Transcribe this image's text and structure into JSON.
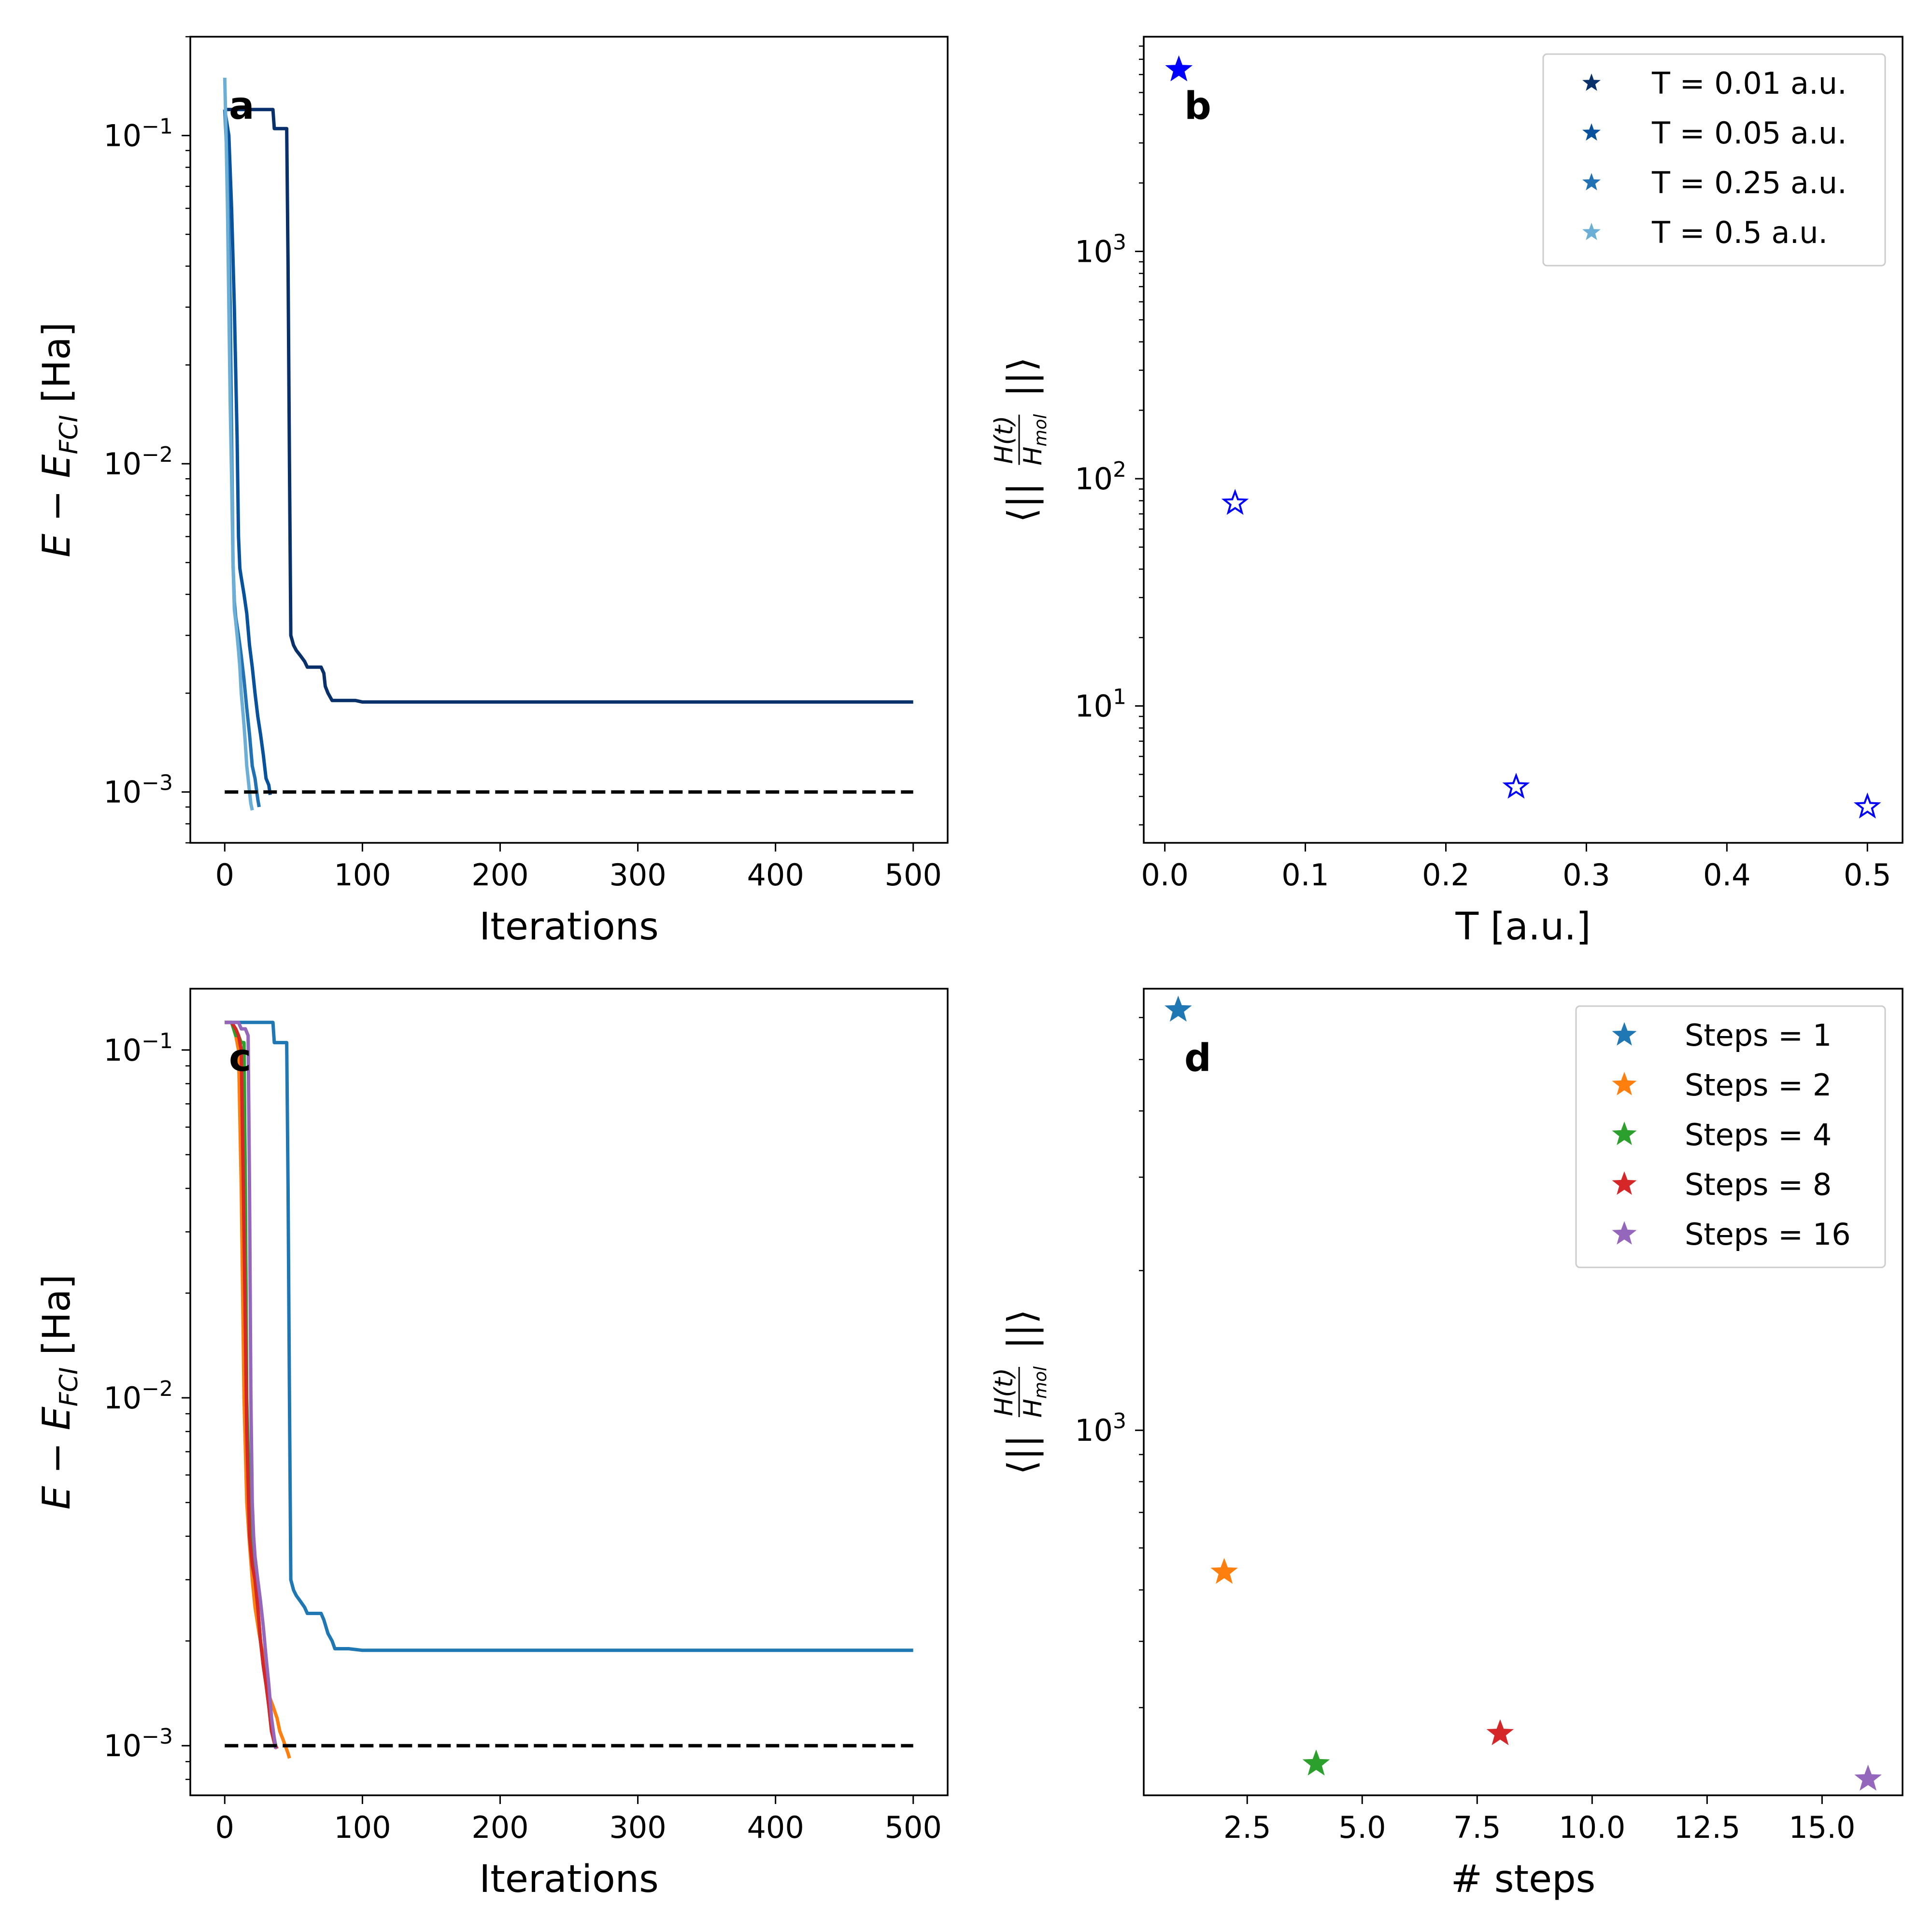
{
  "chart_data": [
    {
      "panel": "a",
      "type": "line",
      "xlabel": "Iterations",
      "ylabel": "E − E_FCI [Ha]",
      "ylabel_parts": {
        "main": "E − E",
        "sub": "FCI",
        "unit": " [Ha]"
      },
      "xlim": [
        -25,
        525
      ],
      "ylim": [
        0.0007,
        0.2
      ],
      "yscale": "log",
      "xticks": [
        0,
        100,
        200,
        300,
        400,
        500
      ],
      "yticks": [
        {
          "value": 0.001,
          "base": "10",
          "exp": "−3"
        },
        {
          "value": 0.01,
          "base": "10",
          "exp": "−2"
        },
        {
          "value": 0.1,
          "base": "10",
          "exp": "−1"
        }
      ],
      "threshold": {
        "value": 0.001,
        "x": [
          0,
          500
        ],
        "color": "#000000",
        "style": "dashed"
      },
      "series": [
        {
          "name": "T = 0.01 a.u.",
          "color": "#08306b",
          "x": [
            0,
            3,
            5,
            10,
            15,
            20,
            25,
            28,
            31,
            33,
            35,
            36,
            37,
            38,
            39,
            40,
            41,
            42,
            43,
            44,
            45,
            46,
            47,
            48,
            50,
            52,
            55,
            58,
            60,
            62,
            65,
            68,
            70,
            72,
            73,
            75,
            78,
            80,
            85,
            90,
            95,
            100,
            120,
            200,
            300,
            400,
            500
          ],
          "y": [
            0.12,
            0.12,
            0.12,
            0.12,
            0.12,
            0.12,
            0.12,
            0.12,
            0.12,
            0.12,
            0.12,
            0.105,
            0.105,
            0.105,
            0.105,
            0.105,
            0.105,
            0.105,
            0.105,
            0.105,
            0.105,
            0.04,
            0.01,
            0.003,
            0.0028,
            0.0027,
            0.0026,
            0.0025,
            0.0024,
            0.0024,
            0.0024,
            0.0024,
            0.0024,
            0.0023,
            0.0021,
            0.002,
            0.0019,
            0.0019,
            0.0019,
            0.0019,
            0.0019,
            0.00188,
            0.00188,
            0.00188,
            0.00188,
            0.00188,
            0.00188
          ]
        },
        {
          "name": "T = 0.05 a.u.",
          "color": "#08519c",
          "x": [
            0,
            3,
            5,
            7,
            9,
            10,
            11,
            12,
            14,
            16,
            18,
            20,
            22,
            24,
            26,
            28,
            30,
            32,
            33
          ],
          "y": [
            0.12,
            0.1,
            0.06,
            0.03,
            0.012,
            0.006,
            0.0048,
            0.0045,
            0.004,
            0.0035,
            0.0028,
            0.0024,
            0.002,
            0.0017,
            0.0015,
            0.0013,
            0.0011,
            0.00105,
            0.00098
          ]
        },
        {
          "name": "T = 0.25 a.u.",
          "color": "#2171b5",
          "x": [
            0,
            2,
            4,
            5,
            6,
            7,
            8,
            9,
            10,
            11,
            12,
            14,
            16,
            18,
            20,
            22,
            24,
            25
          ],
          "y": [
            0.12,
            0.08,
            0.03,
            0.012,
            0.005,
            0.0038,
            0.0034,
            0.0032,
            0.003,
            0.0028,
            0.0026,
            0.0022,
            0.0018,
            0.0015,
            0.0012,
            0.0011,
            0.00095,
            0.0009
          ]
        },
        {
          "name": "T = 0.5 a.u.",
          "color": "#6baed6",
          "x": [
            0,
            1,
            2,
            3,
            4,
            5,
            6,
            7,
            8,
            9,
            10,
            11,
            12,
            13,
            14,
            15,
            16,
            17,
            18,
            19,
            20
          ],
          "y": [
            0.15,
            0.1,
            0.06,
            0.03,
            0.015,
            0.009,
            0.005,
            0.0036,
            0.0033,
            0.003,
            0.0027,
            0.0024,
            0.002,
            0.0018,
            0.0016,
            0.0014,
            0.0012,
            0.0011,
            0.001,
            0.00092,
            0.00088
          ]
        }
      ]
    },
    {
      "panel": "b",
      "type": "scatter",
      "xlabel": "T [a.u.]",
      "ylabel": "⟨||H(t)/H_mol||⟩",
      "ylabel_parts": {
        "open": "⟨||",
        "num": "H(t)",
        "den_main": "H",
        "den_sub": "mol",
        "close": "||⟩"
      },
      "xlim": [
        -0.015,
        0.525
      ],
      "ylim": [
        2.5,
        8800
      ],
      "yscale": "log",
      "xticks": [
        0.0,
        0.1,
        0.2,
        0.3,
        0.4,
        0.5
      ],
      "xtick_labels": [
        "0.0",
        "0.1",
        "0.2",
        "0.3",
        "0.4",
        "0.5"
      ],
      "yticks": [
        {
          "value": 10,
          "base": "10",
          "exp": "1"
        },
        {
          "value": 100,
          "base": "10",
          "exp": "2"
        },
        {
          "value": 1000,
          "base": "10",
          "exp": "3"
        }
      ],
      "marker_color": "#0000ff",
      "points": [
        {
          "x": 0.01,
          "y": 6300,
          "filled": true
        },
        {
          "x": 0.05,
          "y": 78,
          "filled": false
        },
        {
          "x": 0.25,
          "y": 4.4,
          "filled": false
        },
        {
          "x": 0.5,
          "y": 3.6,
          "filled": false
        }
      ],
      "legend": {
        "placement": "top-right",
        "entries": [
          {
            "label": "T = 0.01 a.u.",
            "color": "#08306b"
          },
          {
            "label": "T = 0.05 a.u.",
            "color": "#08519c"
          },
          {
            "label": "T = 0.25 a.u.",
            "color": "#2171b5"
          },
          {
            "label": "T = 0.5 a.u.",
            "color": "#6baed6"
          }
        ]
      }
    },
    {
      "panel": "c",
      "type": "line",
      "xlabel": "Iterations",
      "ylabel": "E − E_FCI [Ha]",
      "ylabel_parts": {
        "main": "E − E",
        "sub": "FCI",
        "unit": " [Ha]"
      },
      "xlim": [
        -25,
        525
      ],
      "ylim": [
        0.00072,
        0.15
      ],
      "yscale": "log",
      "xticks": [
        0,
        100,
        200,
        300,
        400,
        500
      ],
      "yticks": [
        {
          "value": 0.001,
          "base": "10",
          "exp": "−3"
        },
        {
          "value": 0.01,
          "base": "10",
          "exp": "−2"
        },
        {
          "value": 0.1,
          "base": "10",
          "exp": "−1"
        }
      ],
      "threshold": {
        "value": 0.001,
        "x": [
          0,
          500
        ],
        "color": "#000000",
        "style": "dashed"
      },
      "series": [
        {
          "name": "Steps = 1",
          "color": "#1f77b4",
          "x": [
            0,
            5,
            10,
            20,
            30,
            35,
            36,
            40,
            45,
            46,
            47,
            48,
            50,
            52,
            55,
            58,
            60,
            65,
            70,
            72,
            75,
            78,
            80,
            90,
            100,
            120,
            200,
            300,
            400,
            500
          ],
          "y": [
            0.12,
            0.12,
            0.12,
            0.12,
            0.12,
            0.12,
            0.105,
            0.105,
            0.105,
            0.04,
            0.01,
            0.003,
            0.0028,
            0.0027,
            0.0026,
            0.0025,
            0.0024,
            0.0024,
            0.0024,
            0.0023,
            0.0021,
            0.002,
            0.0019,
            0.0019,
            0.00188,
            0.00188,
            0.00188,
            0.00188,
            0.00188,
            0.00188
          ]
        },
        {
          "name": "Steps = 2",
          "color": "#ff7f0e",
          "x": [
            0,
            5,
            8,
            10,
            12,
            14,
            16,
            18,
            20,
            22,
            25,
            28,
            30,
            32,
            35,
            38,
            40,
            42,
            44,
            46,
            47
          ],
          "y": [
            0.12,
            0.12,
            0.11,
            0.1,
            0.04,
            0.01,
            0.005,
            0.0038,
            0.003,
            0.0025,
            0.0021,
            0.0018,
            0.0016,
            0.0014,
            0.0013,
            0.0012,
            0.0011,
            0.00105,
            0.001,
            0.00095,
            0.00092
          ]
        },
        {
          "name": "Steps = 4",
          "color": "#2ca02c",
          "x": [
            0,
            5,
            8,
            10,
            12,
            14,
            15,
            16,
            18,
            20,
            22,
            24,
            26,
            28,
            30,
            32,
            34,
            36,
            37
          ],
          "y": [
            0.12,
            0.12,
            0.11,
            0.11,
            0.105,
            0.105,
            0.04,
            0.01,
            0.005,
            0.0035,
            0.003,
            0.0025,
            0.002,
            0.0017,
            0.0015,
            0.0013,
            0.0011,
            0.00105,
            0.001
          ]
        },
        {
          "name": "Steps = 8",
          "color": "#d62728",
          "x": [
            0,
            5,
            8,
            10,
            12,
            14,
            16,
            18,
            20,
            22,
            24,
            26,
            28,
            30,
            32,
            34,
            36,
            38
          ],
          "y": [
            0.12,
            0.12,
            0.115,
            0.11,
            0.1,
            0.03,
            0.008,
            0.004,
            0.0033,
            0.003,
            0.0025,
            0.002,
            0.0017,
            0.0015,
            0.0013,
            0.0011,
            0.00102,
            0.00098
          ]
        },
        {
          "name": "Steps = 16",
          "color": "#9467bd",
          "x": [
            0,
            5,
            10,
            12,
            15,
            17,
            18,
            19,
            20,
            21,
            22,
            24,
            26,
            28,
            30,
            32,
            34,
            36,
            37
          ],
          "y": [
            0.12,
            0.12,
            0.12,
            0.115,
            0.115,
            0.11,
            0.04,
            0.01,
            0.005,
            0.004,
            0.0035,
            0.003,
            0.0026,
            0.0022,
            0.0018,
            0.0015,
            0.0012,
            0.00105,
            0.00098
          ]
        }
      ]
    },
    {
      "panel": "d",
      "type": "scatter",
      "xlabel": "# steps",
      "ylabel": "⟨||H(t)/H_mol||⟩",
      "ylabel_parts": {
        "open": "⟨||",
        "num": "H(t)",
        "den_main": "H",
        "den_sub": "mol",
        "close": "||⟩"
      },
      "xlim": [
        0.25,
        16.75
      ],
      "ylim": [
        205,
        6800
      ],
      "yscale": "log",
      "xticks": [
        2.5,
        5.0,
        7.5,
        10.0,
        12.5,
        15.0
      ],
      "xtick_labels": [
        "2.5",
        "5.0",
        "7.5",
        "10.0",
        "12.5",
        "15.0"
      ],
      "yticks": [
        {
          "value": 1000,
          "base": "10",
          "exp": "3"
        }
      ],
      "points": [
        {
          "x": 1,
          "y": 6200,
          "color": "#1f77b4"
        },
        {
          "x": 2,
          "y": 540,
          "color": "#ff7f0e"
        },
        {
          "x": 4,
          "y": 235,
          "color": "#2ca02c"
        },
        {
          "x": 8,
          "y": 268,
          "color": "#d62728"
        },
        {
          "x": 16,
          "y": 220,
          "color": "#9467bd"
        }
      ],
      "legend": {
        "placement": "top-right",
        "entries": [
          {
            "label": "Steps = 1",
            "color": "#1f77b4"
          },
          {
            "label": "Steps = 2",
            "color": "#ff7f0e"
          },
          {
            "label": "Steps = 4",
            "color": "#2ca02c"
          },
          {
            "label": "Steps = 8",
            "color": "#d62728"
          },
          {
            "label": "Steps = 16",
            "color": "#9467bd"
          }
        ]
      }
    }
  ]
}
